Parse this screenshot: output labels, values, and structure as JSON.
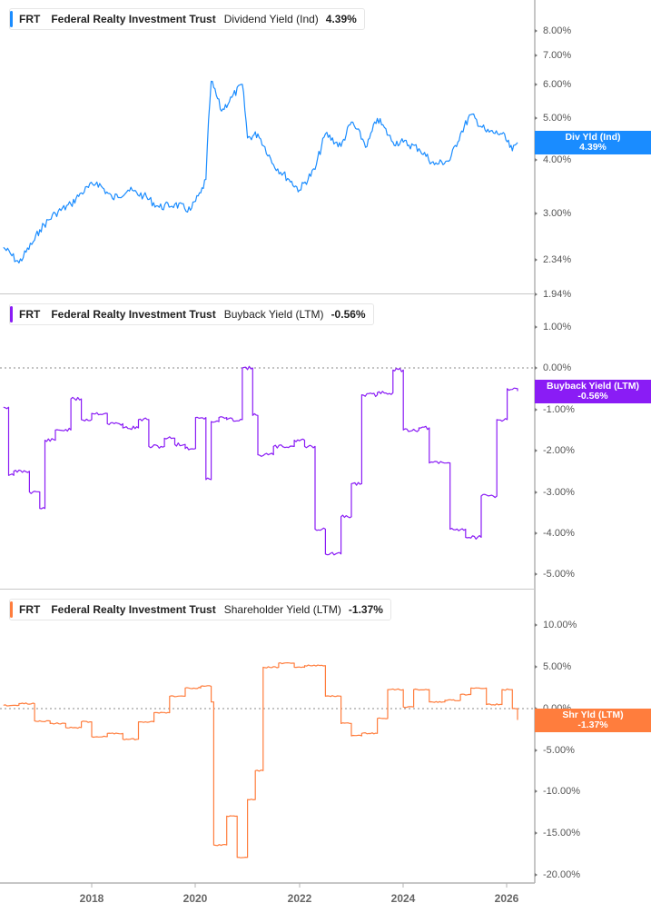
{
  "colors": {
    "dividend": "#1a8cff",
    "buyback": "#8a1cf5",
    "shareholder": "#ff7d3d",
    "axis": "#b3b3b3",
    "zero_line": "#888888"
  },
  "panels": [
    {
      "legend": {
        "ticker": "FRT",
        "name": "Federal Realty Investment Trust",
        "metric": "Dividend Yield (Ind)",
        "value": "4.39%"
      },
      "badge": {
        "label": "Div Yld (Ind)",
        "value": "4.39%"
      },
      "y_ticks": [
        "8.00%",
        "7.00%",
        "6.00%",
        "5.00%",
        "4.00%",
        "3.00%",
        "2.34%",
        "1.94%"
      ]
    },
    {
      "legend": {
        "ticker": "FRT",
        "name": "Federal Realty Investment Trust",
        "metric": "Buyback Yield (LTM)",
        "value": "-0.56%"
      },
      "badge": {
        "label": "Buyback Yield (LTM)",
        "value": "-0.56%"
      },
      "y_ticks": [
        "1.00%",
        "0.00%",
        "-1.00%",
        "-2.00%",
        "-3.00%",
        "-4.00%",
        "-5.00%"
      ]
    },
    {
      "legend": {
        "ticker": "FRT",
        "name": "Federal Realty Investment Trust",
        "metric": "Shareholder Yield (LTM)",
        "value": "-1.37%"
      },
      "badge": {
        "label": "Shr Yld (LTM)",
        "value": "-1.37%"
      },
      "y_ticks": [
        "10.00%",
        "5.00%",
        "0.00%",
        "-5.00%",
        "-10.00%",
        "-15.00%",
        "-20.00%"
      ]
    }
  ],
  "x_axis": {
    "ticks": [
      "2018",
      "2020",
      "2022",
      "2024",
      "2026"
    ]
  },
  "chart_data": [
    {
      "type": "line",
      "title": "FRT Federal Realty Investment Trust Dividend Yield (Ind)",
      "xlabel": "",
      "ylabel": "Dividend Yield (%)",
      "y_scale": "log",
      "ylim": [
        1.94,
        9.0
      ],
      "y_ticks": [
        8.0,
        7.0,
        6.0,
        5.0,
        4.0,
        3.0,
        2.34,
        1.94
      ],
      "x": [
        2016.3,
        2016.6,
        2016.9,
        2017.0,
        2017.3,
        2017.6,
        2017.8,
        2018.1,
        2018.4,
        2018.7,
        2019.0,
        2019.3,
        2019.6,
        2019.9,
        2020.1,
        2020.2,
        2020.3,
        2020.5,
        2020.7,
        2020.9,
        2021.0,
        2021.2,
        2021.5,
        2021.8,
        2022.0,
        2022.3,
        2022.5,
        2022.8,
        2023.0,
        2023.3,
        2023.5,
        2023.8,
        2024.0,
        2024.3,
        2024.6,
        2024.9,
        2025.1,
        2025.3,
        2025.6,
        2025.9,
        2026.1,
        2026.2
      ],
      "values": [
        2.5,
        2.3,
        2.6,
        2.75,
        3.0,
        3.15,
        3.35,
        3.55,
        3.25,
        3.4,
        3.3,
        3.1,
        3.15,
        3.05,
        3.35,
        3.6,
        6.1,
        5.2,
        5.6,
        6.0,
        4.5,
        4.6,
        3.9,
        3.6,
        3.4,
        3.8,
        4.6,
        4.3,
        4.9,
        4.3,
        5.0,
        4.4,
        4.4,
        4.25,
        3.9,
        4.0,
        4.6,
        5.1,
        4.65,
        4.6,
        4.2,
        4.39
      ]
    },
    {
      "type": "line",
      "title": "FRT Federal Realty Investment Trust Buyback Yield (LTM)",
      "xlabel": "",
      "ylabel": "Buyback Yield (%)",
      "ylim": [
        -5.3,
        1.6
      ],
      "y_ticks": [
        1.0,
        0.0,
        -1.0,
        -2.0,
        -3.0,
        -4.0,
        -5.0
      ],
      "x": [
        2016.3,
        2016.4,
        2016.5,
        2016.8,
        2017.0,
        2017.1,
        2017.3,
        2017.6,
        2017.8,
        2018.0,
        2018.3,
        2018.6,
        2018.9,
        2019.1,
        2019.4,
        2019.6,
        2019.8,
        2020.0,
        2020.2,
        2020.3,
        2020.45,
        2020.6,
        2020.9,
        2021.1,
        2021.2,
        2021.5,
        2021.9,
        2022.1,
        2022.3,
        2022.5,
        2022.8,
        2023.0,
        2023.2,
        2023.5,
        2023.8,
        2024.0,
        2024.3,
        2024.5,
        2024.9,
        2025.2,
        2025.5,
        2025.8,
        2026.0,
        2026.2
      ],
      "values": [
        -0.95,
        -2.6,
        -2.5,
        -3.0,
        -3.4,
        -1.75,
        -1.5,
        -0.75,
        -1.25,
        -1.1,
        -1.35,
        -1.45,
        -1.25,
        -1.9,
        -1.7,
        -1.85,
        -1.95,
        -1.2,
        -2.7,
        -1.3,
        -1.2,
        -1.25,
        0.0,
        -1.15,
        -2.1,
        -1.9,
        -1.75,
        -1.9,
        -3.9,
        -4.5,
        -3.6,
        -2.8,
        -0.65,
        -0.6,
        -0.05,
        -1.5,
        -1.45,
        -2.3,
        -3.9,
        -4.1,
        -3.1,
        -1.25,
        -0.5,
        -0.56
      ]
    },
    {
      "type": "line",
      "title": "FRT Federal Realty Investment Trust Shareholder Yield (LTM)",
      "xlabel": "",
      "ylabel": "Shareholder Yield (%)",
      "ylim": [
        -21,
        14
      ],
      "y_ticks": [
        10.0,
        5.0,
        0.0,
        -5.0,
        -10.0,
        -15.0,
        -20.0
      ],
      "x": [
        2016.3,
        2016.6,
        2016.9,
        2017.2,
        2017.5,
        2017.8,
        2018.0,
        2018.3,
        2018.6,
        2018.9,
        2019.2,
        2019.5,
        2019.8,
        2020.1,
        2020.3,
        2020.35,
        2020.6,
        2020.8,
        2021.0,
        2021.15,
        2021.3,
        2021.6,
        2021.9,
        2022.1,
        2022.5,
        2022.8,
        2023.0,
        2023.2,
        2023.5,
        2023.7,
        2024.0,
        2024.2,
        2024.5,
        2024.8,
        2025.1,
        2025.3,
        2025.6,
        2025.9,
        2026.1,
        2026.2
      ],
      "values": [
        0.4,
        0.6,
        -1.5,
        -1.8,
        -2.3,
        -1.6,
        -3.4,
        -3.0,
        -3.7,
        -1.6,
        -0.5,
        1.5,
        2.5,
        2.7,
        0.8,
        -16.5,
        -13.0,
        -18.0,
        -11.0,
        -7.5,
        5.0,
        5.5,
        5.0,
        5.2,
        1.5,
        -1.8,
        -3.3,
        -3.0,
        -1.2,
        2.3,
        0.2,
        2.3,
        0.8,
        1.0,
        1.7,
        2.5,
        0.5,
        2.3,
        0.0,
        -1.37
      ]
    }
  ]
}
